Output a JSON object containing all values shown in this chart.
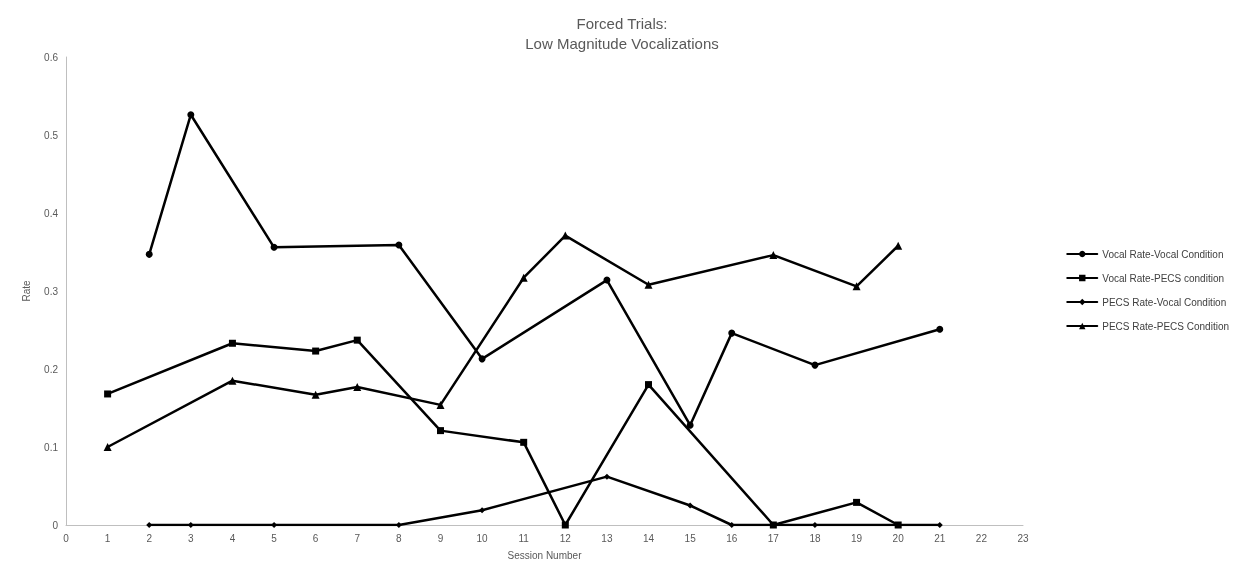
{
  "chart_data": {
    "type": "line",
    "title": "Forced Trials:\nLow Magnitude Vocalizations",
    "xlabel": "Session Number",
    "ylabel": "Rate",
    "xlim": [
      0,
      23
    ],
    "xticks": [
      0,
      1,
      2,
      3,
      4,
      5,
      6,
      7,
      8,
      9,
      10,
      11,
      12,
      13,
      14,
      15,
      16,
      17,
      18,
      19,
      20,
      21,
      22,
      23
    ],
    "ylim": [
      0,
      0.6
    ],
    "yticks": [
      0,
      0.1,
      0.2,
      0.3,
      0.4,
      0.5,
      0.6
    ],
    "grid": false,
    "legend": "right",
    "line_style": "solid",
    "series": [
      {
        "name": "Vocal Rate-Vocal Condition",
        "color": "#000000",
        "marker": "circle",
        "x": [
          2,
          3,
          5,
          8,
          10,
          13,
          15,
          16,
          18,
          21
        ],
        "values": [
          0.347,
          0.526,
          0.356,
          0.359,
          0.213,
          0.314,
          0.128,
          0.246,
          0.205,
          0.251
        ]
      },
      {
        "name": "Vocal Rate-PECS condition",
        "color": "#000000",
        "marker": "square",
        "x": [
          1,
          4,
          6,
          7,
          9,
          11,
          12,
          14,
          17,
          19,
          20
        ],
        "values": [
          0.168,
          0.233,
          0.223,
          0.237,
          0.121,
          0.106,
          0,
          0.18,
          0,
          0.029,
          0
        ]
      },
      {
        "name": "PECS Rate-Vocal Condition",
        "color": "#000000",
        "marker": "diamond",
        "x": [
          2,
          3,
          5,
          8,
          10,
          13,
          15,
          16,
          18,
          21
        ],
        "values": [
          0,
          0,
          0,
          0,
          0.019,
          0.062,
          0.025,
          0,
          0,
          0
        ]
      },
      {
        "name": "PECS Rate-PECS Condition",
        "color": "#000000",
        "marker": "triangle",
        "x": [
          1,
          4,
          6,
          7,
          9,
          11,
          12,
          14,
          17,
          19,
          20
        ],
        "values": [
          0.1,
          0.185,
          0.167,
          0.177,
          0.154,
          0.317,
          0.371,
          0.308,
          0.346,
          0.306,
          0.358
        ]
      }
    ]
  }
}
